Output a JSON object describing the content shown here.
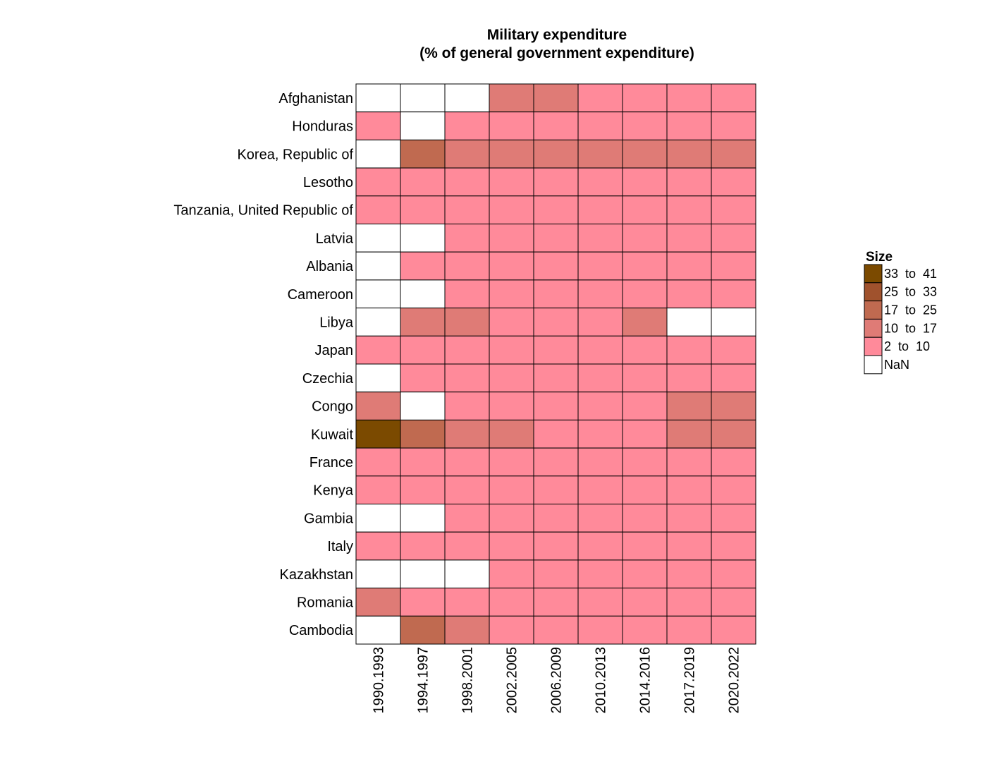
{
  "chart_data": {
    "type": "heatmap",
    "title": "Military expenditure",
    "subtitle": "(% of general government expenditure)",
    "x_categories": [
      "1990.1993",
      "1994.1997",
      "1998.2001",
      "2002.2005",
      "2006.2009",
      "2010.2013",
      "2014.2016",
      "2017.2019",
      "2020.2022"
    ],
    "y_categories": [
      "Afghanistan",
      "Honduras",
      "Korea, Republic of",
      "Lesotho",
      "Tanzania, United Republic of",
      "Latvia",
      "Albania",
      "Cameroon",
      "Libya",
      "Japan",
      "Czechia",
      "Congo",
      "Kuwait",
      "France",
      "Kenya",
      "Gambia",
      "Italy",
      "Kazakhstan",
      "Romania",
      "Cambodia"
    ],
    "value_type": "bin index into legend.bins (0 = '2 to 10', 1 = '10 to 17', 2 = '17 to 25', 3 = '25 to 33', 4 = '33 to 41', null = NaN)",
    "cells": [
      [
        null,
        null,
        null,
        1,
        1,
        0,
        0,
        0,
        0
      ],
      [
        0,
        null,
        0,
        0,
        0,
        0,
        0,
        0,
        0
      ],
      [
        null,
        2,
        1,
        1,
        1,
        1,
        1,
        1,
        1
      ],
      [
        0,
        0,
        0,
        0,
        0,
        0,
        0,
        0,
        0
      ],
      [
        0,
        0,
        0,
        0,
        0,
        0,
        0,
        0,
        0
      ],
      [
        null,
        null,
        0,
        0,
        0,
        0,
        0,
        0,
        0
      ],
      [
        null,
        0,
        0,
        0,
        0,
        0,
        0,
        0,
        0
      ],
      [
        null,
        null,
        0,
        0,
        0,
        0,
        0,
        0,
        0
      ],
      [
        null,
        1,
        1,
        0,
        0,
        0,
        1,
        null,
        null
      ],
      [
        0,
        0,
        0,
        0,
        0,
        0,
        0,
        0,
        0
      ],
      [
        null,
        0,
        0,
        0,
        0,
        0,
        0,
        0,
        0
      ],
      [
        1,
        null,
        0,
        0,
        0,
        0,
        0,
        1,
        1
      ],
      [
        4,
        2,
        1,
        1,
        0,
        0,
        0,
        1,
        1
      ],
      [
        0,
        0,
        0,
        0,
        0,
        0,
        0,
        0,
        0
      ],
      [
        0,
        0,
        0,
        0,
        0,
        0,
        0,
        0,
        0
      ],
      [
        null,
        null,
        0,
        0,
        0,
        0,
        0,
        0,
        0
      ],
      [
        0,
        0,
        0,
        0,
        0,
        0,
        0,
        0,
        0
      ],
      [
        null,
        null,
        null,
        0,
        0,
        0,
        0,
        0,
        0
      ],
      [
        1,
        0,
        0,
        0,
        0,
        0,
        0,
        0,
        0
      ],
      [
        null,
        2,
        1,
        0,
        0,
        0,
        0,
        0,
        0
      ]
    ],
    "legend": {
      "title": "Size",
      "position": "right",
      "bins": [
        {
          "label": "2  to  10",
          "color": "#ff8a9a"
        },
        {
          "label": "10  to  17",
          "color": "#df7b76"
        },
        {
          "label": "17  to  25",
          "color": "#c06a50"
        },
        {
          "label": "25  to  33",
          "color": "#a0522d"
        },
        {
          "label": "33  to  41",
          "color": "#7b4a00"
        }
      ],
      "nan": {
        "label": "NaN",
        "color": "#ffffff"
      }
    },
    "grid": false
  }
}
